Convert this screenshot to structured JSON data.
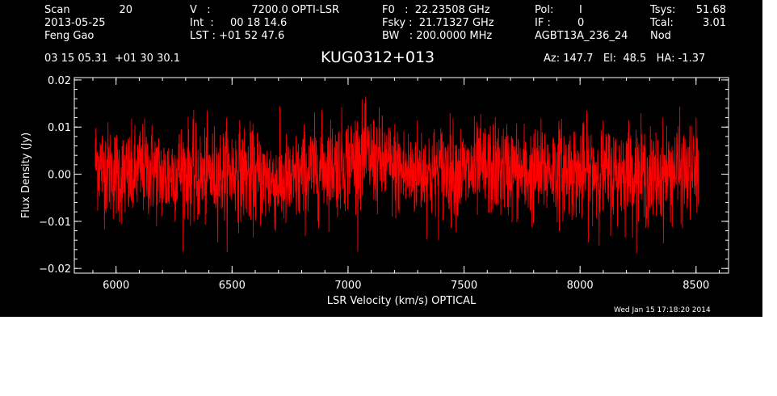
{
  "header": {
    "col1": [
      "Scan",
      "2013-05-25",
      "Feng Gao"
    ],
    "scan_number": "20",
    "col2": [
      "V   :",
      "Int  :",
      "LST : +01 52 47.6"
    ],
    "col2_values": [
      "7200.0 OPTI-LSR",
      "00 18 14.6"
    ],
    "col3": [
      "F0   :  22.23508 GHz",
      "Fsky :  21.71327 GHz",
      "BW   : 200.0000 MHz"
    ],
    "col4": [
      "Pol:",
      "IF :",
      "AGBT13A_236_24"
    ],
    "col4_values": [
      "I",
      "0"
    ],
    "col5": [
      "Tsys:",
      "Tcal:",
      "Nod"
    ],
    "col5_values": [
      "51.68",
      "3.01"
    ],
    "coords": "03 15 05.31  +01 30 30.1",
    "source": "KUG0312+013",
    "az_el_ha": "Az: 147.7   El:  48.5   HA: -1.37",
    "timestamp": "Wed Jan 15 17:18:20 2014"
  },
  "colors": {
    "background": "#000000",
    "axes": "#ffffff",
    "trace": "#ff0000"
  },
  "chart_data": {
    "type": "line",
    "title": "KUG0312+013",
    "xlabel": "LSR Velocity (km/s) OPTICAL",
    "ylabel": "Flux Density (Jy)",
    "xlim": [
      5820,
      8640
    ],
    "ylim": [
      -0.021,
      0.0205
    ],
    "xticks": [
      6000,
      6500,
      7000,
      7500,
      8000,
      8500
    ],
    "xtick_labels": [
      "6000",
      "6500",
      "7000",
      "7500",
      "8000",
      "8500"
    ],
    "yticks": [
      -0.02,
      -0.01,
      0.0,
      0.01,
      0.02
    ],
    "ytick_labels": [
      "−0.02",
      "−0.01",
      "0.00",
      "0.01",
      "0.02"
    ],
    "grid": false,
    "series": [
      {
        "color": "#ff0000",
        "x": [
          5910,
          5960,
          6010,
          6060,
          6110,
          6160,
          6210,
          6260,
          6310,
          6360,
          6410,
          6460,
          6510,
          6560,
          6610,
          6660,
          6710,
          6760,
          6810,
          6860,
          6910,
          6960,
          7010,
          7060,
          7110,
          7160,
          7210,
          7260,
          7310,
          7360,
          7410,
          7460,
          7510,
          7560,
          7610,
          7660,
          7710,
          7760,
          7810,
          7860,
          7910,
          7960,
          8010,
          8060,
          8110,
          8160,
          8210,
          8260,
          8310,
          8360,
          8410,
          8460,
          8510
        ],
        "y": [
          0.003,
          0.001,
          0.0,
          -0.001,
          0.001,
          0.001,
          -0.001,
          0.001,
          0.001,
          -0.001,
          0.0,
          0.0,
          0.001,
          0.0,
          -0.001,
          -0.001,
          -0.002,
          -0.002,
          0.0,
          0.001,
          0.002,
          0.002,
          0.003,
          0.004,
          0.003,
          0.002,
          0.001,
          0.0,
          0.001,
          0.0,
          0.001,
          0.001,
          0.0,
          0.001,
          0.001,
          0.001,
          0.001,
          0.0,
          0.0,
          0.001,
          0.001,
          0.001,
          0.0,
          0.001,
          0.0,
          0.0,
          0.001,
          0.0,
          -0.001,
          0.0,
          0.001,
          0.0,
          0.001
        ],
        "noise_rms": 0.005,
        "max": 0.0165,
        "min": -0.0168
      }
    ]
  }
}
